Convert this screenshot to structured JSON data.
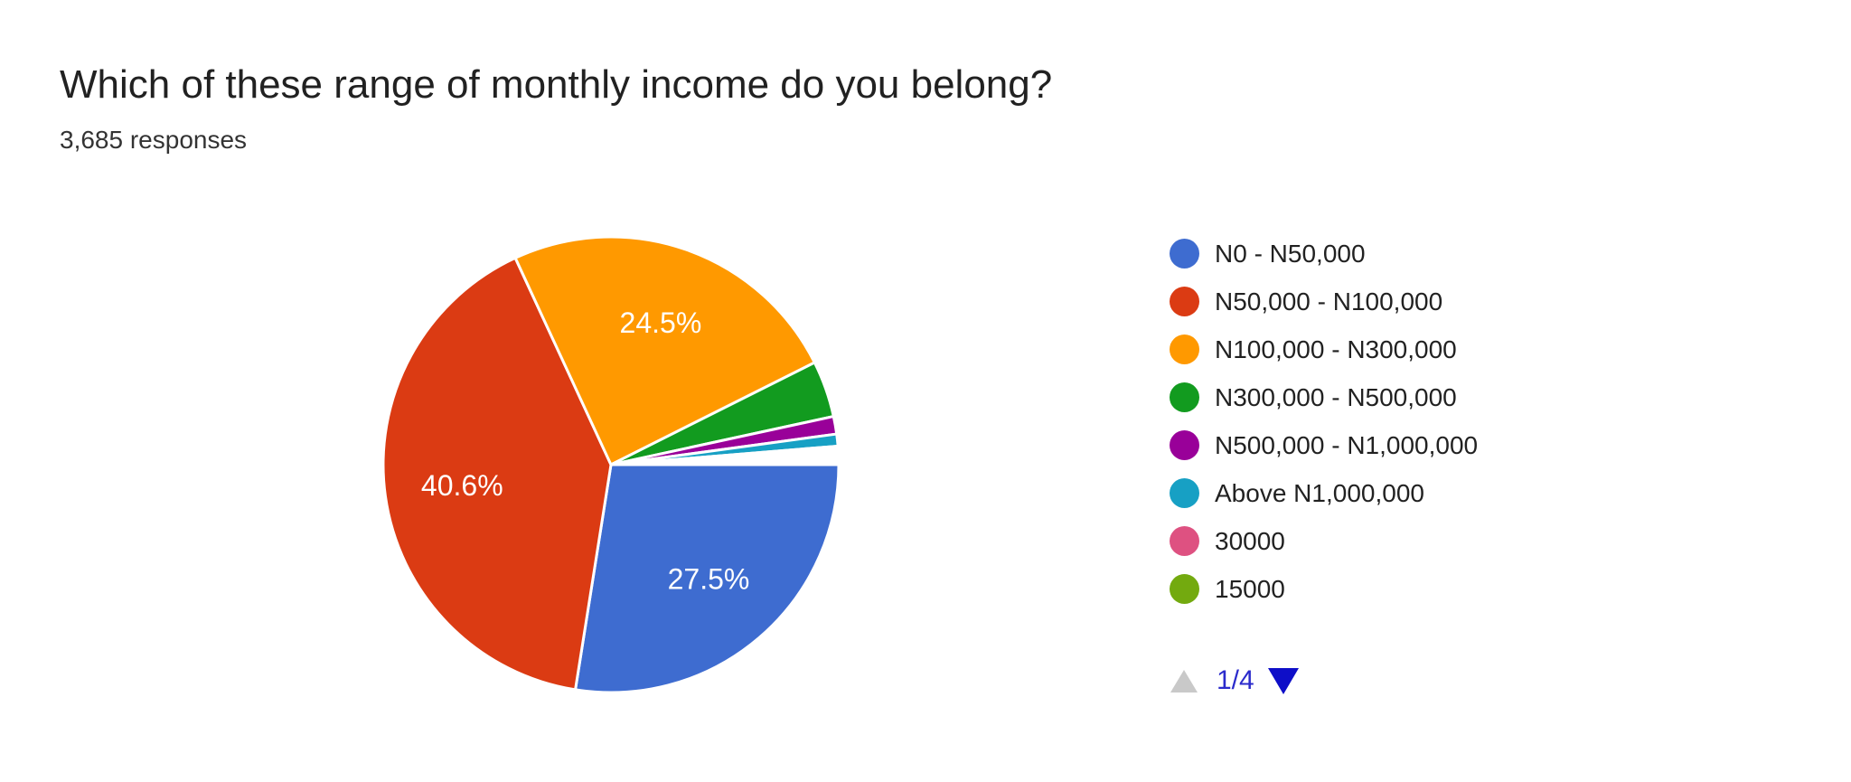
{
  "header": {
    "title": "Which of these range of monthly income do you belong?",
    "responses": "3,685 responses"
  },
  "chart_data": {
    "type": "pie",
    "title": "Which of these range of monthly income do you belong?",
    "subtitle": "3,685 responses",
    "rotation_deg_clockwise_from_3oclock": 0,
    "slice_border_color": "#FFFFFF",
    "percent_label_color": "#FFFFFF",
    "legend_position": "right",
    "slices": [
      {
        "label": "N0 - N50,000",
        "pct": 27.5,
        "pct_label": "27.5%",
        "estimated": false,
        "color": "#3E6CD0"
      },
      {
        "label": "N50,000 - N100,000",
        "pct": 40.6,
        "pct_label": "40.6%",
        "estimated": false,
        "color": "#DB3B13"
      },
      {
        "label": "N100,000 - N300,000",
        "pct": 24.5,
        "pct_label": "24.5%",
        "estimated": false,
        "color": "#FF9900"
      },
      {
        "label": "N300,000 - N500,000",
        "pct": 4.0,
        "pct_label": null,
        "estimated": true,
        "color": "#129B1F"
      },
      {
        "label": "N500,000 - N1,000,000",
        "pct": 1.25,
        "pct_label": null,
        "estimated": true,
        "color": "#990099"
      },
      {
        "label": "Above N1,000,000",
        "pct": 0.85,
        "pct_label": null,
        "estimated": true,
        "color": "#17A0C4"
      },
      {
        "label": "30000",
        "pct": 0.05,
        "pct_label": null,
        "estimated": true,
        "color": "#DE5181"
      },
      {
        "label": "15000",
        "pct": 0.05,
        "pct_label": null,
        "estimated": true,
        "color": "#73AA0F"
      },
      {
        "label": "",
        "pct": 1.2,
        "pct_label": null,
        "estimated": true,
        "color": null,
        "note": "unlabeled white sliver just above 3 o'clock — remaining tiny options shown on legend pages 2-4"
      }
    ]
  },
  "legend": {
    "pagination": {
      "label": "1/4",
      "up_color": "#C9C9C9",
      "down_color": "#0E0EC8",
      "label_color": "#2B2BCC"
    }
  }
}
